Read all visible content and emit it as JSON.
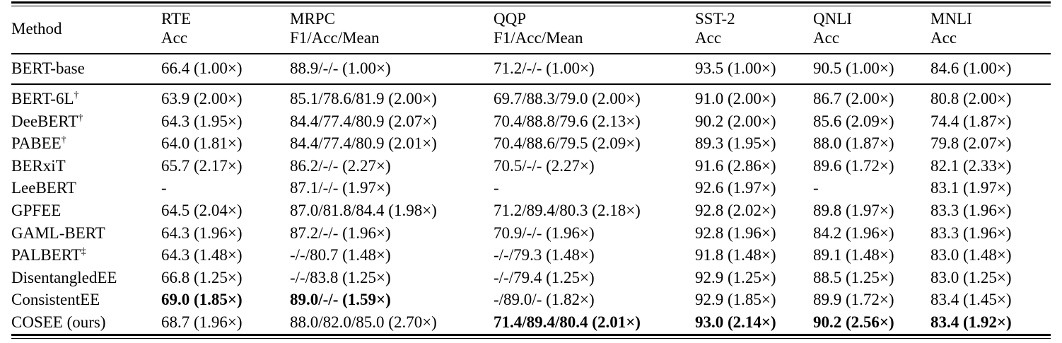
{
  "table": {
    "colors": {
      "text": "#000000",
      "background": "#ffffff",
      "rule": "#000000"
    },
    "columns": [
      {
        "label": "Method",
        "sublabel": ""
      },
      {
        "label": "RTE",
        "sublabel": "Acc"
      },
      {
        "label": "MRPC",
        "sublabel": "F1/Acc/Mean"
      },
      {
        "label": "QQP",
        "sublabel": "F1/Acc/Mean"
      },
      {
        "label": "SST-2",
        "sublabel": "Acc"
      },
      {
        "label": "QNLI",
        "sublabel": "Acc"
      },
      {
        "label": "MNLI",
        "sublabel": "Acc"
      }
    ],
    "baseline_row": {
      "method": "BERT-base",
      "sup": "",
      "cells": [
        {
          "text": "66.4 (1.00×)",
          "bold": false
        },
        {
          "text": "88.9/-/- (1.00×)",
          "bold": false
        },
        {
          "text": "71.2/-/- (1.00×)",
          "bold": false
        },
        {
          "text": "93.5 (1.00×)",
          "bold": false
        },
        {
          "text": "90.5 (1.00×)",
          "bold": false
        },
        {
          "text": "84.6 (1.00×)",
          "bold": false
        }
      ]
    },
    "rows": [
      {
        "method": "BERT-6L",
        "sup": "†",
        "cells": [
          {
            "text": "63.9 (2.00×)",
            "bold": false
          },
          {
            "text": "85.1/78.6/81.9 (2.00×)",
            "bold": false
          },
          {
            "text": "69.7/88.3/79.0 (2.00×)",
            "bold": false
          },
          {
            "text": "91.0 (2.00×)",
            "bold": false
          },
          {
            "text": "86.7 (2.00×)",
            "bold": false
          },
          {
            "text": "80.8 (2.00×)",
            "bold": false
          }
        ]
      },
      {
        "method": "DeeBERT",
        "sup": "†",
        "cells": [
          {
            "text": "64.3 (1.95×)",
            "bold": false
          },
          {
            "text": "84.4/77.4/80.9 (2.07×)",
            "bold": false
          },
          {
            "text": "70.4/88.8/79.6 (2.13×)",
            "bold": false
          },
          {
            "text": "90.2 (2.00×)",
            "bold": false
          },
          {
            "text": "85.6 (2.09×)",
            "bold": false
          },
          {
            "text": "74.4 (1.87×)",
            "bold": false
          }
        ]
      },
      {
        "method": "PABEE",
        "sup": "†",
        "cells": [
          {
            "text": "64.0 (1.81×)",
            "bold": false
          },
          {
            "text": "84.4/77.4/80.9 (2.01×)",
            "bold": false
          },
          {
            "text": "70.4/88.6/79.5 (2.09×)",
            "bold": false
          },
          {
            "text": "89.3 (1.95×)",
            "bold": false
          },
          {
            "text": "88.0 (1.87×)",
            "bold": false
          },
          {
            "text": "79.8 (2.07×)",
            "bold": false
          }
        ]
      },
      {
        "method": "BERxiT",
        "sup": "",
        "cells": [
          {
            "text": "65.7 (2.17×)",
            "bold": false
          },
          {
            "text": "86.2/-/- (2.27×)",
            "bold": false
          },
          {
            "text": "70.5/-/- (2.27×)",
            "bold": false
          },
          {
            "text": "91.6 (2.86×)",
            "bold": false
          },
          {
            "text": "89.6 (1.72×)",
            "bold": false
          },
          {
            "text": "82.1 (2.33×)",
            "bold": false
          }
        ]
      },
      {
        "method": "LeeBERT",
        "sup": "",
        "cells": [
          {
            "text": "-",
            "bold": false
          },
          {
            "text": "87.1/-/- (1.97×)",
            "bold": false
          },
          {
            "text": "-",
            "bold": false
          },
          {
            "text": "92.6 (1.97×)",
            "bold": false
          },
          {
            "text": "-",
            "bold": false
          },
          {
            "text": "83.1 (1.97×)",
            "bold": false
          }
        ]
      },
      {
        "method": "GPFEE",
        "sup": "",
        "cells": [
          {
            "text": "64.5 (2.04×)",
            "bold": false
          },
          {
            "text": "87.0/81.8/84.4 (1.98×)",
            "bold": false
          },
          {
            "text": "71.2/89.4/80.3 (2.18×)",
            "bold": false
          },
          {
            "text": "92.8 (2.02×)",
            "bold": false
          },
          {
            "text": "89.8 (1.97×)",
            "bold": false
          },
          {
            "text": "83.3 (1.96×)",
            "bold": false
          }
        ]
      },
      {
        "method": "GAML-BERT",
        "sup": "",
        "cells": [
          {
            "text": "64.3 (1.96×)",
            "bold": false
          },
          {
            "text": "87.2/-/- (1.96×)",
            "bold": false
          },
          {
            "text": "70.9/-/- (1.96×)",
            "bold": false
          },
          {
            "text": "92.8 (1.96×)",
            "bold": false
          },
          {
            "text": "84.2 (1.96×)",
            "bold": false
          },
          {
            "text": "83.3 (1.96×)",
            "bold": false
          }
        ]
      },
      {
        "method": "PALBERT",
        "sup": "‡",
        "cells": [
          {
            "text": "64.3 (1.48×)",
            "bold": false
          },
          {
            "text": "-/-/80.7 (1.48×)",
            "bold": false
          },
          {
            "text": "-/-/79.3 (1.48×)",
            "bold": false
          },
          {
            "text": "91.8 (1.48×)",
            "bold": false
          },
          {
            "text": "89.1 (1.48×)",
            "bold": false
          },
          {
            "text": "83.0 (1.48×)",
            "bold": false
          }
        ]
      },
      {
        "method": "DisentangledEE",
        "sup": "",
        "cells": [
          {
            "text": "66.8 (1.25×)",
            "bold": false
          },
          {
            "text": "-/-/83.8 (1.25×)",
            "bold": false
          },
          {
            "text": "-/-/79.4 (1.25×)",
            "bold": false
          },
          {
            "text": "92.9 (1.25×)",
            "bold": false
          },
          {
            "text": "88.5 (1.25×)",
            "bold": false
          },
          {
            "text": "83.0 (1.25×)",
            "bold": false
          }
        ]
      },
      {
        "method": "ConsistentEE",
        "sup": "",
        "cells": [
          {
            "text": "69.0 (1.85×)",
            "bold": true
          },
          {
            "text": "89.0/-/- (1.59×)",
            "bold": true
          },
          {
            "text": "-/89.0/- (1.82×)",
            "bold": false
          },
          {
            "text": "92.9 (1.85×)",
            "bold": false
          },
          {
            "text": "89.9 (1.72×)",
            "bold": false
          },
          {
            "text": "83.4 (1.45×)",
            "bold": false
          }
        ]
      },
      {
        "method": "COSEE (ours)",
        "sup": "",
        "cells": [
          {
            "text": "68.7 (1.96×)",
            "bold": false
          },
          {
            "text": "88.0/82.0/85.0 (2.70×)",
            "bold": false
          },
          {
            "text": "71.4/89.4/80.4 (2.01×)",
            "bold": true
          },
          {
            "text": "93.0 (2.14×)",
            "bold": true
          },
          {
            "text": "90.2 (2.56×)",
            "bold": true
          },
          {
            "text": "83.4 (1.92×)",
            "bold": true
          }
        ]
      }
    ]
  }
}
